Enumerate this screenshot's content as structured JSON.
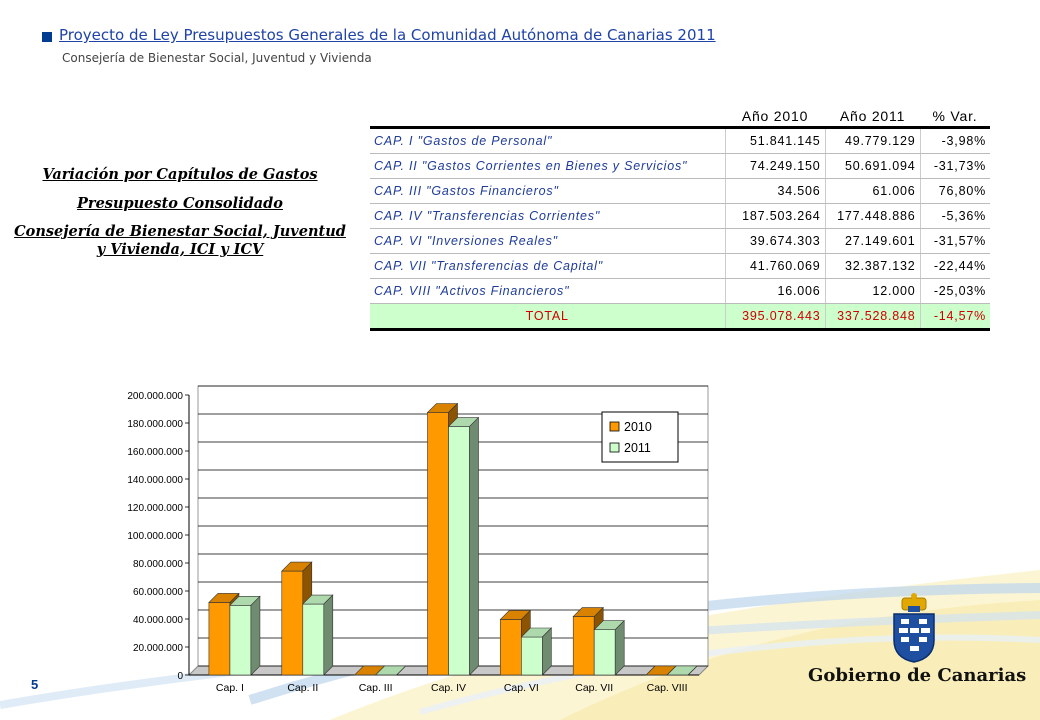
{
  "header": {
    "title": "Proyecto de Ley Presupuestos Generales de la Comunidad Autónoma de Canarias 2011",
    "subtitle": "Consejería de Bienestar Social, Juventud y Vivienda"
  },
  "side_title": {
    "line1": "Variación por Capítulos de Gastos",
    "line2": "Presupuesto Consolidado",
    "line3": "Consejería de Bienestar Social, Juventud y Vivienda, ICI y ICV"
  },
  "table": {
    "headers": [
      "",
      "Año 2010",
      "Año 2011",
      "% Var."
    ],
    "rows": [
      {
        "name": "CAP. I   \"Gastos de Personal\"",
        "y2010": "51.841.145",
        "y2011": "49.779.129",
        "var": "-3,98%"
      },
      {
        "name": "CAP. II  \"Gastos Corrientes en Bienes y Servicios\"",
        "y2010": "74.249.150",
        "y2011": "50.691.094",
        "var": "-31,73%"
      },
      {
        "name": "CAP. III \"Gastos Financieros\"",
        "y2010": "34.506",
        "y2011": "61.006",
        "var": "76,80%"
      },
      {
        "name": "CAP. IV  \"Transferencias Corrientes\"",
        "y2010": "187.503.264",
        "y2011": "177.448.886",
        "var": "-5,36%"
      },
      {
        "name": "CAP. VI  \"Inversiones Reales\"",
        "y2010": "39.674.303",
        "y2011": "27.149.601",
        "var": "-31,57%"
      },
      {
        "name": "CAP. VII \"Transferencias de Capital\"",
        "y2010": "41.760.069",
        "y2011": "32.387.132",
        "var": "-22,44%"
      },
      {
        "name": "CAP. VIII \"Activos Financieros\"",
        "y2010": "16.006",
        "y2011": "12.000",
        "var": "-25,03%"
      }
    ],
    "total": {
      "name": "TOTAL",
      "y2010": "395.078.443",
      "y2011": "337.528.848",
      "var": "-14,57%"
    }
  },
  "chart_data": {
    "type": "bar",
    "categories": [
      "Cap. I",
      "Cap. II",
      "Cap. III",
      "Cap. IV",
      "Cap. VI",
      "Cap. VII",
      "Cap. VIII"
    ],
    "series": [
      {
        "name": "2010",
        "values": [
          51841145,
          74249150,
          34506,
          187503264,
          39674303,
          41760069,
          16006
        ],
        "color": "#ff9900"
      },
      {
        "name": "2011",
        "values": [
          49779129,
          50691094,
          61006,
          177448886,
          27149601,
          32387132,
          12000
        ],
        "color": "#ccffcc"
      }
    ],
    "ylim": [
      0,
      200000000
    ],
    "yticks": [
      "0",
      "20.000.000",
      "40.000.000",
      "60.000.000",
      "80.000.000",
      "100.000.000",
      "120.000.000",
      "140.000.000",
      "160.000.000",
      "180.000.000",
      "200.000.000"
    ],
    "grid": true,
    "legend": "top-right"
  },
  "logo": {
    "text": "Gobierno de Canarias"
  },
  "page_number": "5"
}
